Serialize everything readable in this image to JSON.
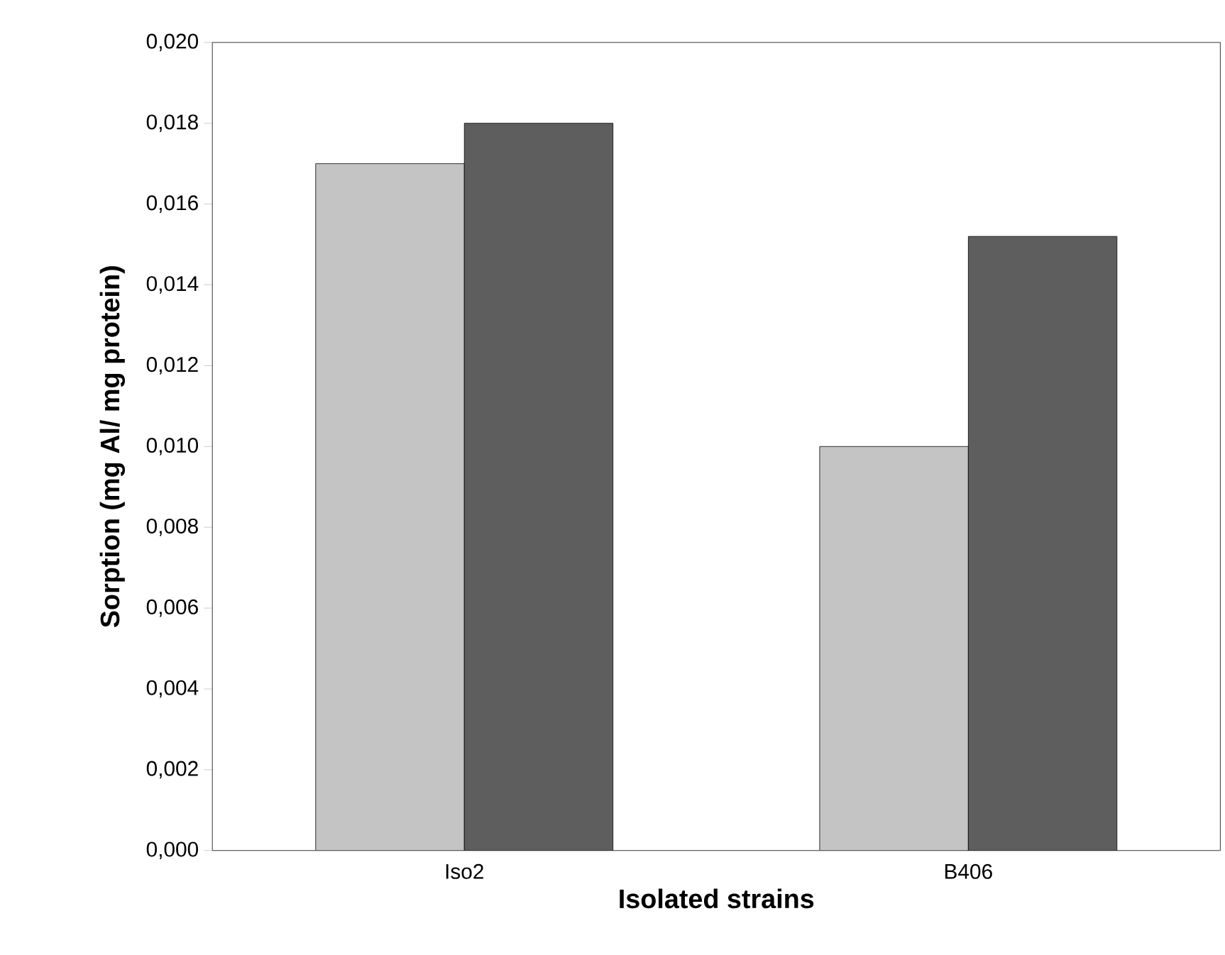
{
  "chart_data": {
    "type": "bar",
    "xlabel": "Isolated strains",
    "ylabel": "Sorption (mg Al/ mg protein)",
    "categories": [
      "Iso2",
      "B406"
    ],
    "series": [
      {
        "color": "#c4c4c4",
        "values": [
          0.017,
          0.01
        ]
      },
      {
        "color": "#5e5e5e",
        "values": [
          0.018,
          0.0152
        ]
      }
    ],
    "ylim": [
      0,
      0.02
    ],
    "yticks": [
      {
        "value": 0,
        "label": "0,000"
      },
      {
        "value": 0.002,
        "label": "0,002"
      },
      {
        "value": 0.004,
        "label": "0,004"
      },
      {
        "value": 0.006,
        "label": "0,006"
      },
      {
        "value": 0.008,
        "label": "0,008"
      },
      {
        "value": 0.01,
        "label": "0,010"
      },
      {
        "value": 0.012,
        "label": "0,012"
      },
      {
        "value": 0.014,
        "label": "0,014"
      },
      {
        "value": 0.016,
        "label": "0,016"
      },
      {
        "value": 0.018,
        "label": "0,018"
      },
      {
        "value": 0.02,
        "label": "0,020"
      }
    ],
    "grid": false
  }
}
